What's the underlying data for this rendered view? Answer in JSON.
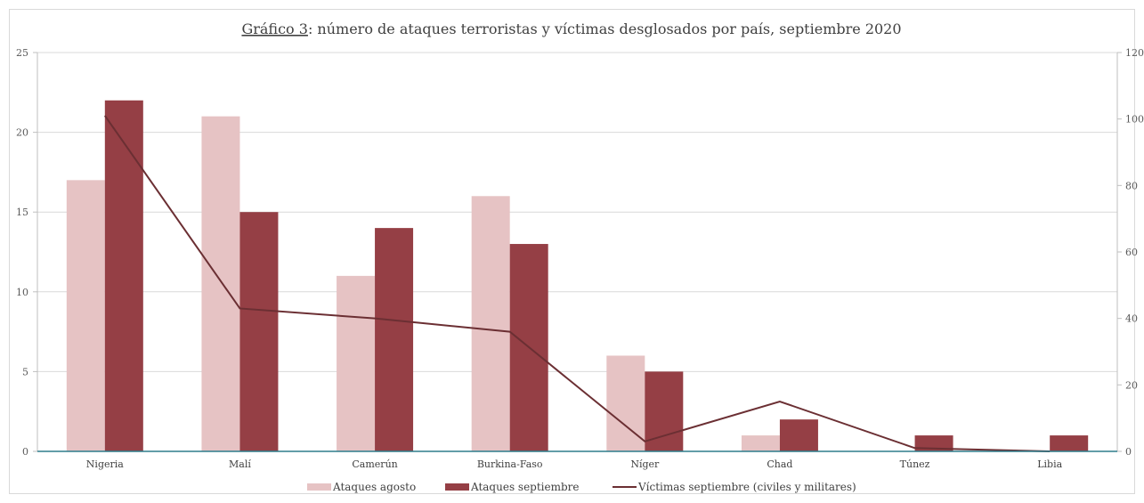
{
  "chart_data": {
    "type": "bar",
    "title_prefix": "Gráfico 3",
    "title_rest": ": número de ataques terroristas y víctimas desglosados por país, septiembre 2020",
    "categories": [
      "Nigeria",
      "Malí",
      "Camerún",
      "Burkina-Faso",
      "Níger",
      "Chad",
      "Túnez",
      "Libia"
    ],
    "series": [
      {
        "name": "Ataques agosto",
        "type": "bar",
        "axis": "left",
        "color": "#e6c3c4",
        "values": [
          17,
          21,
          11,
          16,
          6,
          1,
          0,
          0
        ]
      },
      {
        "name": "Ataques septiembre",
        "type": "bar",
        "axis": "left",
        "color": "#953f45",
        "values": [
          22,
          15,
          14,
          13,
          5,
          2,
          1,
          1
        ]
      },
      {
        "name": "Víctimas septiembre (civiles y militares)",
        "type": "line",
        "axis": "right",
        "color": "#6b2f33",
        "values": [
          101,
          43,
          40,
          36,
          3,
          15,
          1,
          0
        ]
      }
    ],
    "y_left": {
      "ylim": [
        0,
        25
      ],
      "ticks": [
        0,
        5,
        10,
        15,
        20,
        25
      ]
    },
    "y_right": {
      "ylim": [
        0,
        120
      ],
      "ticks": [
        0,
        20,
        40,
        60,
        80,
        100,
        120
      ]
    },
    "grid": true,
    "legend_position": "bottom"
  }
}
